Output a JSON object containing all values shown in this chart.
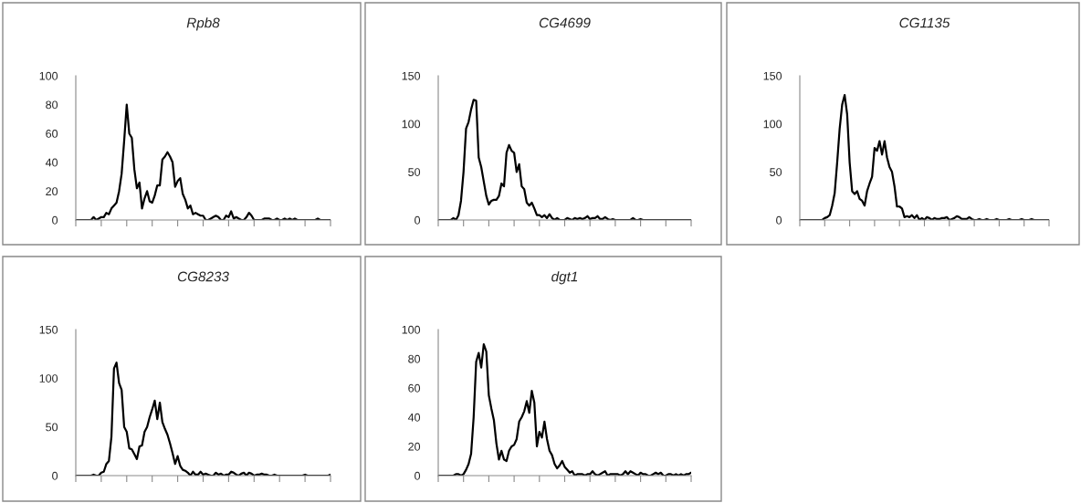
{
  "chart_data": [
    {
      "type": "line",
      "title": "Rpb8",
      "color": "#000000",
      "ylim": [
        0,
        100
      ],
      "yticks": [
        0,
        20,
        40,
        60,
        80,
        100
      ],
      "tick_labels": "y",
      "grid": false,
      "legend": false,
      "categories": [
        null,
        null,
        null,
        null,
        null,
        null,
        null,
        null,
        null,
        null,
        null,
        null,
        null,
        null,
        null,
        null,
        null,
        null,
        null,
        null,
        null,
        null,
        null,
        null,
        null,
        null,
        null,
        null,
        null,
        null,
        null,
        null,
        null,
        null,
        null,
        null,
        null,
        null,
        null,
        null,
        null,
        null,
        null,
        null,
        null,
        null,
        null,
        null,
        null,
        null,
        null,
        null,
        null,
        null,
        null,
        null,
        null,
        null,
        null,
        null,
        null,
        null,
        null,
        null,
        null,
        null,
        null,
        null,
        null,
        null,
        null,
        null,
        null,
        null,
        null,
        null,
        null,
        null,
        null,
        null,
        null,
        null,
        null,
        null,
        null,
        null,
        null,
        null,
        null,
        null,
        null,
        null,
        null,
        null,
        null,
        null,
        null,
        null,
        null,
        null,
        null
      ],
      "values": [
        0,
        0,
        0,
        0,
        0,
        0,
        0,
        2,
        0,
        1,
        2,
        2,
        5,
        4,
        8,
        10,
        12,
        20,
        32,
        55,
        80,
        60,
        57,
        35,
        22,
        26,
        8,
        15,
        20,
        13,
        12,
        17,
        24,
        24,
        42,
        44,
        47,
        44,
        40,
        23,
        27,
        29,
        18,
        14,
        8,
        10,
        4,
        5,
        4,
        3,
        3,
        0,
        0,
        1,
        2,
        3,
        2,
        0,
        0,
        3,
        2,
        6,
        1,
        2,
        1,
        0,
        0,
        2,
        5,
        3,
        0,
        0,
        0,
        0,
        1,
        1,
        1,
        0,
        0,
        1,
        0,
        0,
        1,
        0,
        1,
        0,
        1,
        0,
        0,
        0,
        0,
        0,
        0,
        0,
        0,
        1,
        0,
        0,
        0,
        0,
        0
      ]
    },
    {
      "type": "line",
      "title": "CG4699",
      "color": "#000000",
      "ylim": [
        0,
        150
      ],
      "yticks": [
        0,
        50,
        100,
        150
      ],
      "tick_labels": "y",
      "grid": false,
      "legend": false,
      "categories": [
        null,
        null,
        null,
        null,
        null,
        null,
        null,
        null,
        null,
        null,
        null,
        null,
        null,
        null,
        null,
        null,
        null,
        null,
        null,
        null,
        null,
        null,
        null,
        null,
        null,
        null,
        null,
        null,
        null,
        null,
        null,
        null,
        null,
        null,
        null,
        null,
        null,
        null,
        null,
        null,
        null,
        null,
        null,
        null,
        null,
        null,
        null,
        null,
        null,
        null,
        null,
        null,
        null,
        null,
        null,
        null,
        null,
        null,
        null,
        null,
        null,
        null,
        null,
        null,
        null,
        null,
        null,
        null,
        null,
        null,
        null,
        null,
        null,
        null,
        null,
        null,
        null,
        null,
        null,
        null,
        null,
        null,
        null,
        null,
        null,
        null,
        null,
        null,
        null,
        null,
        null,
        null,
        null,
        null,
        null,
        null,
        null,
        null,
        null,
        null,
        null
      ],
      "values": [
        0,
        0,
        0,
        0,
        0,
        0,
        2,
        0,
        5,
        20,
        50,
        95,
        102,
        115,
        125,
        124,
        65,
        55,
        40,
        25,
        16,
        20,
        21,
        21,
        25,
        38,
        35,
        70,
        78,
        72,
        70,
        50,
        58,
        35,
        32,
        18,
        15,
        18,
        12,
        5,
        5,
        3,
        5,
        2,
        6,
        2,
        0,
        2,
        0,
        0,
        0,
        2,
        1,
        0,
        2,
        1,
        2,
        1,
        2,
        4,
        1,
        2,
        2,
        4,
        1,
        1,
        3,
        1,
        0,
        1,
        0,
        0,
        0,
        0,
        0,
        0,
        0,
        2,
        0,
        0,
        1,
        0,
        0,
        0,
        0,
        0,
        0,
        0,
        0,
        0,
        0,
        0,
        0,
        0,
        0,
        0,
        0,
        0,
        0,
        0,
        0
      ]
    },
    {
      "type": "line",
      "title": "CG1135",
      "color": "#000000",
      "ylim": [
        0,
        150
      ],
      "yticks": [
        0,
        50,
        100,
        150
      ],
      "tick_labels": "y",
      "grid": false,
      "legend": false,
      "categories": [
        null,
        null,
        null,
        null,
        null,
        null,
        null,
        null,
        null,
        null,
        null,
        null,
        null,
        null,
        null,
        null,
        null,
        null,
        null,
        null,
        null,
        null,
        null,
        null,
        null,
        null,
        null,
        null,
        null,
        null,
        null,
        null,
        null,
        null,
        null,
        null,
        null,
        null,
        null,
        null,
        null,
        null,
        null,
        null,
        null,
        null,
        null,
        null,
        null,
        null,
        null,
        null,
        null,
        null,
        null,
        null,
        null,
        null,
        null,
        null,
        null,
        null,
        null,
        null,
        null,
        null,
        null,
        null,
        null,
        null,
        null,
        null,
        null,
        null,
        null,
        null,
        null,
        null,
        null,
        null,
        null,
        null,
        null,
        null,
        null,
        null,
        null,
        null,
        null,
        null,
        null,
        null,
        null,
        null,
        null,
        null,
        null,
        null,
        null,
        null,
        null
      ],
      "values": [
        0,
        0,
        0,
        0,
        0,
        0,
        0,
        0,
        0,
        0,
        2,
        3,
        5,
        15,
        28,
        60,
        95,
        120,
        130,
        110,
        60,
        30,
        27,
        30,
        22,
        20,
        15,
        30,
        38,
        45,
        75,
        72,
        82,
        68,
        82,
        65,
        55,
        50,
        35,
        14,
        14,
        12,
        3,
        4,
        3,
        5,
        2,
        5,
        0,
        2,
        0,
        3,
        2,
        0,
        2,
        1,
        1,
        2,
        2,
        3,
        0,
        1,
        2,
        4,
        3,
        1,
        1,
        1,
        3,
        1,
        0,
        0,
        1,
        0,
        0,
        1,
        0,
        0,
        0,
        1,
        0,
        0,
        0,
        0,
        1,
        0,
        0,
        0,
        0,
        1,
        0,
        0,
        0,
        1,
        0,
        0,
        0,
        0,
        0,
        0,
        0
      ]
    },
    {
      "type": "line",
      "title": "CG8233",
      "color": "#000000",
      "ylim": [
        0,
        150
      ],
      "yticks": [
        0,
        50,
        100,
        150
      ],
      "tick_labels": "y",
      "grid": false,
      "legend": false,
      "categories": [
        null,
        null,
        null,
        null,
        null,
        null,
        null,
        null,
        null,
        null,
        null,
        null,
        null,
        null,
        null,
        null,
        null,
        null,
        null,
        null,
        null,
        null,
        null,
        null,
        null,
        null,
        null,
        null,
        null,
        null,
        null,
        null,
        null,
        null,
        null,
        null,
        null,
        null,
        null,
        null,
        null,
        null,
        null,
        null,
        null,
        null,
        null,
        null,
        null,
        null,
        null,
        null,
        null,
        null,
        null,
        null,
        null,
        null,
        null,
        null,
        null,
        null,
        null,
        null,
        null,
        null,
        null,
        null,
        null,
        null,
        null,
        null,
        null,
        null,
        null,
        null,
        null,
        null,
        null,
        null,
        null,
        null,
        null,
        null,
        null,
        null,
        null,
        null,
        null,
        null,
        null,
        null,
        null,
        null,
        null,
        null,
        null,
        null,
        null,
        null,
        null
      ],
      "values": [
        0,
        0,
        0,
        0,
        0,
        0,
        0,
        1,
        0,
        0,
        3,
        4,
        12,
        15,
        40,
        110,
        116,
        95,
        88,
        50,
        45,
        28,
        27,
        22,
        17,
        30,
        31,
        45,
        50,
        60,
        68,
        77,
        58,
        75,
        55,
        48,
        42,
        33,
        23,
        12,
        20,
        10,
        6,
        5,
        3,
        0,
        4,
        1,
        1,
        4,
        1,
        2,
        1,
        0,
        0,
        3,
        1,
        2,
        0,
        1,
        1,
        4,
        3,
        1,
        0,
        2,
        3,
        0,
        3,
        2,
        0,
        1,
        1,
        2,
        1,
        1,
        0,
        0,
        1,
        0,
        0,
        0,
        0,
        0,
        0,
        0,
        0,
        0,
        0,
        0,
        1,
        0,
        0,
        0,
        0,
        0,
        0,
        0,
        0,
        0,
        1
      ]
    },
    {
      "type": "line",
      "title": "dgt1",
      "color": "#000000",
      "ylim": [
        0,
        100
      ],
      "yticks": [
        0,
        20,
        40,
        60,
        80,
        100
      ],
      "tick_labels": "y",
      "grid": false,
      "legend": false,
      "categories": [
        null,
        null,
        null,
        null,
        null,
        null,
        null,
        null,
        null,
        null,
        null,
        null,
        null,
        null,
        null,
        null,
        null,
        null,
        null,
        null,
        null,
        null,
        null,
        null,
        null,
        null,
        null,
        null,
        null,
        null,
        null,
        null,
        null,
        null,
        null,
        null,
        null,
        null,
        null,
        null,
        null,
        null,
        null,
        null,
        null,
        null,
        null,
        null,
        null,
        null,
        null,
        null,
        null,
        null,
        null,
        null,
        null,
        null,
        null,
        null,
        null,
        null,
        null,
        null,
        null,
        null,
        null,
        null,
        null,
        null,
        null,
        null,
        null,
        null,
        null,
        null,
        null,
        null,
        null,
        null,
        null,
        null,
        null,
        null,
        null,
        null,
        null,
        null,
        null,
        null,
        null,
        null,
        null,
        null,
        null,
        null,
        null,
        null,
        null,
        null,
        null
      ],
      "values": [
        0,
        0,
        0,
        0,
        0,
        0,
        0,
        1,
        1,
        0,
        1,
        4,
        8,
        15,
        40,
        78,
        84,
        74,
        90,
        85,
        55,
        46,
        38,
        22,
        11,
        17,
        11,
        10,
        17,
        20,
        21,
        25,
        37,
        40,
        44,
        51,
        43,
        58,
        50,
        20,
        30,
        26,
        37,
        25,
        17,
        14,
        8,
        5,
        7,
        10,
        6,
        4,
        2,
        3,
        0,
        1,
        1,
        1,
        0,
        1,
        1,
        3,
        1,
        0,
        1,
        2,
        3,
        0,
        1,
        1,
        1,
        1,
        0,
        1,
        3,
        1,
        3,
        2,
        1,
        0,
        2,
        1,
        1,
        0,
        0,
        1,
        2,
        1,
        2,
        0,
        0,
        1,
        1,
        0,
        1,
        0,
        1,
        0,
        1,
        1,
        2
      ]
    }
  ]
}
